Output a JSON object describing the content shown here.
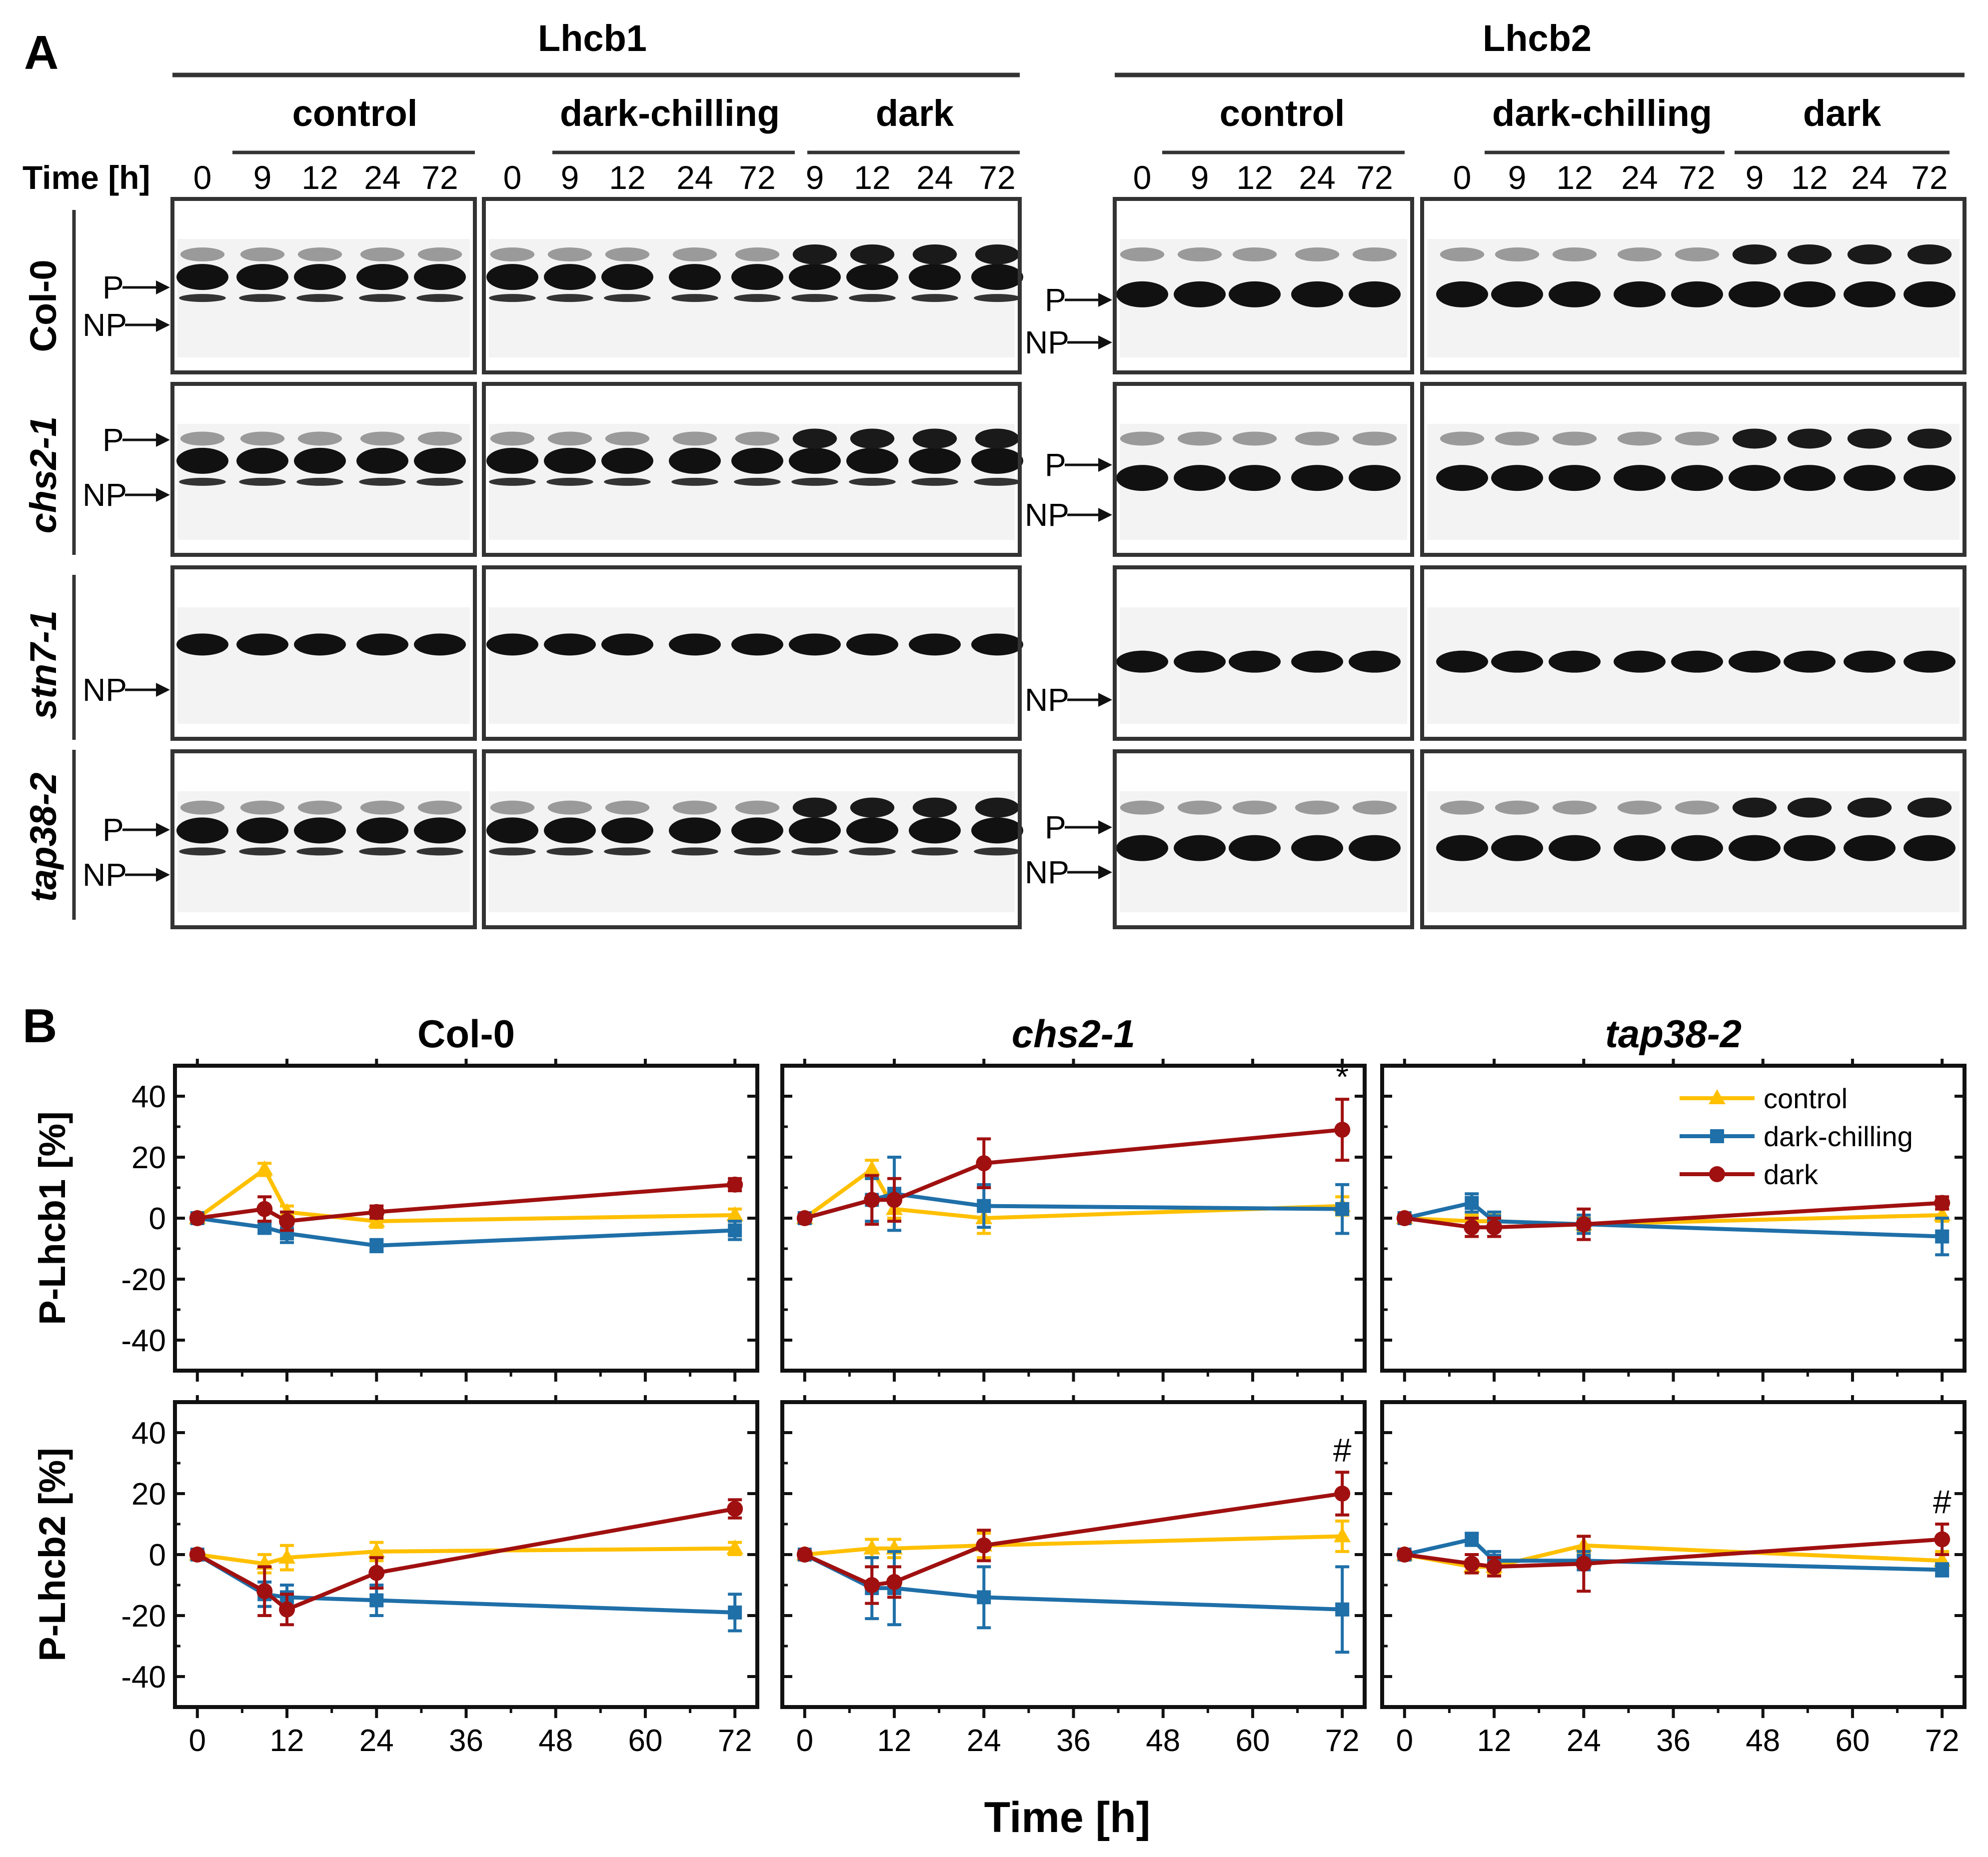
{
  "panel_a": {
    "letter": "A",
    "proteins": [
      "Lhcb1",
      "Lhcb2"
    ],
    "conditions": [
      "control",
      "dark-chilling",
      "dark"
    ],
    "time_label": "Time [h]",
    "lane_times": [
      "0",
      "9",
      "12",
      "24",
      "72",
      "0",
      "9",
      "12",
      "24",
      "72",
      "9",
      "12",
      "24",
      "72"
    ],
    "genotypes": [
      "Col-0",
      "chs2-1",
      "stn7-1",
      "tap38-2"
    ],
    "band_labels": {
      "p": "P",
      "np": "NP"
    }
  },
  "panel_b": {
    "letter": "B"
  },
  "chart_data": {
    "type": "line",
    "title": "",
    "xlabel": "Time [h]",
    "xlim": [
      -3,
      75
    ],
    "ylim": [
      -50,
      50
    ],
    "xticks": [
      0,
      12,
      24,
      36,
      48,
      60,
      72
    ],
    "yticks": [
      -40,
      -20,
      0,
      20,
      40
    ],
    "legend": [
      "control",
      "dark-chilling",
      "dark"
    ],
    "colors": {
      "control": "#FFC000",
      "dark-chilling": "#1F6FA8",
      "dark": "#A01010"
    },
    "x": [
      0,
      9,
      12,
      24,
      72
    ],
    "panels": [
      {
        "row": 0,
        "col": 0,
        "title": "Col-0",
        "italic": false,
        "ylabel": "P-Lhcb1 [%]",
        "series": [
          {
            "name": "control",
            "values": [
              0,
              16,
              2,
              -1,
              1
            ],
            "err": [
              1,
              2,
              2,
              2,
              2
            ]
          },
          {
            "name": "dark-chilling",
            "values": [
              0,
              -3,
              -5,
              -9,
              -4
            ],
            "err": [
              1,
              2,
              3,
              2,
              3
            ]
          },
          {
            "name": "dark",
            "values": [
              0,
              3,
              -1,
              2,
              11
            ],
            "err": [
              1,
              4,
              3,
              2,
              2
            ]
          }
        ]
      },
      {
        "row": 0,
        "col": 1,
        "title": "chs2-1",
        "italic": true,
        "annotation": "*",
        "series": [
          {
            "name": "control",
            "values": [
              0,
              16,
              3,
              0,
              4
            ],
            "err": [
              1,
              3,
              3,
              5,
              3
            ]
          },
          {
            "name": "dark-chilling",
            "values": [
              0,
              6,
              8,
              4,
              3
            ],
            "err": [
              1,
              7,
              12,
              7,
              8
            ]
          },
          {
            "name": "dark",
            "values": [
              0,
              6,
              6,
              18,
              29
            ],
            "err": [
              1,
              8,
              7,
              8,
              10
            ]
          }
        ]
      },
      {
        "row": 0,
        "col": 2,
        "title": "tap38-2",
        "italic": true,
        "legend_here": true,
        "series": [
          {
            "name": "control",
            "values": [
              0,
              -1,
              -1,
              -2,
              1
            ],
            "err": [
              1,
              2,
              2,
              2,
              2
            ]
          },
          {
            "name": "dark-chilling",
            "values": [
              0,
              5,
              -1,
              -2,
              -6
            ],
            "err": [
              1,
              3,
              3,
              3,
              6
            ]
          },
          {
            "name": "dark",
            "values": [
              0,
              -3,
              -3,
              -2,
              5
            ],
            "err": [
              1,
              3,
              3,
              5,
              2
            ]
          }
        ]
      },
      {
        "row": 1,
        "col": 0,
        "ylabel": "P-Lhcb2 [%]",
        "series": [
          {
            "name": "control",
            "values": [
              0,
              -3,
              -1,
              1,
              2
            ],
            "err": [
              1,
              3,
              4,
              3,
              2
            ]
          },
          {
            "name": "dark-chilling",
            "values": [
              0,
              -13,
              -14,
              -15,
              -19
            ],
            "err": [
              1,
              4,
              4,
              5,
              6
            ]
          },
          {
            "name": "dark",
            "values": [
              0,
              -12,
              -18,
              -6,
              15
            ],
            "err": [
              1,
              8,
              5,
              5,
              3
            ]
          }
        ]
      },
      {
        "row": 1,
        "col": 1,
        "annotation": "#",
        "series": [
          {
            "name": "control",
            "values": [
              0,
              2,
              2,
              3,
              6
            ],
            "err": [
              1,
              3,
              3,
              4,
              5
            ]
          },
          {
            "name": "dark-chilling",
            "values": [
              0,
              -11,
              -11,
              -14,
              -18
            ],
            "err": [
              1,
              10,
              12,
              10,
              14
            ]
          },
          {
            "name": "dark",
            "values": [
              0,
              -10,
              -9,
              3,
              20
            ],
            "err": [
              1,
              6,
              5,
              5,
              7
            ]
          }
        ]
      },
      {
        "row": 1,
        "col": 2,
        "annotation": "#",
        "series": [
          {
            "name": "control",
            "values": [
              0,
              -4,
              -4,
              3,
              -2
            ],
            "err": [
              1,
              2,
              2,
              3,
              3
            ]
          },
          {
            "name": "dark-chilling",
            "values": [
              0,
              5,
              -2,
              -2,
              -5
            ],
            "err": [
              1,
              2,
              3,
              3,
              2
            ]
          },
          {
            "name": "dark",
            "values": [
              0,
              -3,
              -4,
              -3,
              5
            ],
            "err": [
              1,
              3,
              3,
              9,
              5
            ]
          }
        ]
      }
    ]
  }
}
